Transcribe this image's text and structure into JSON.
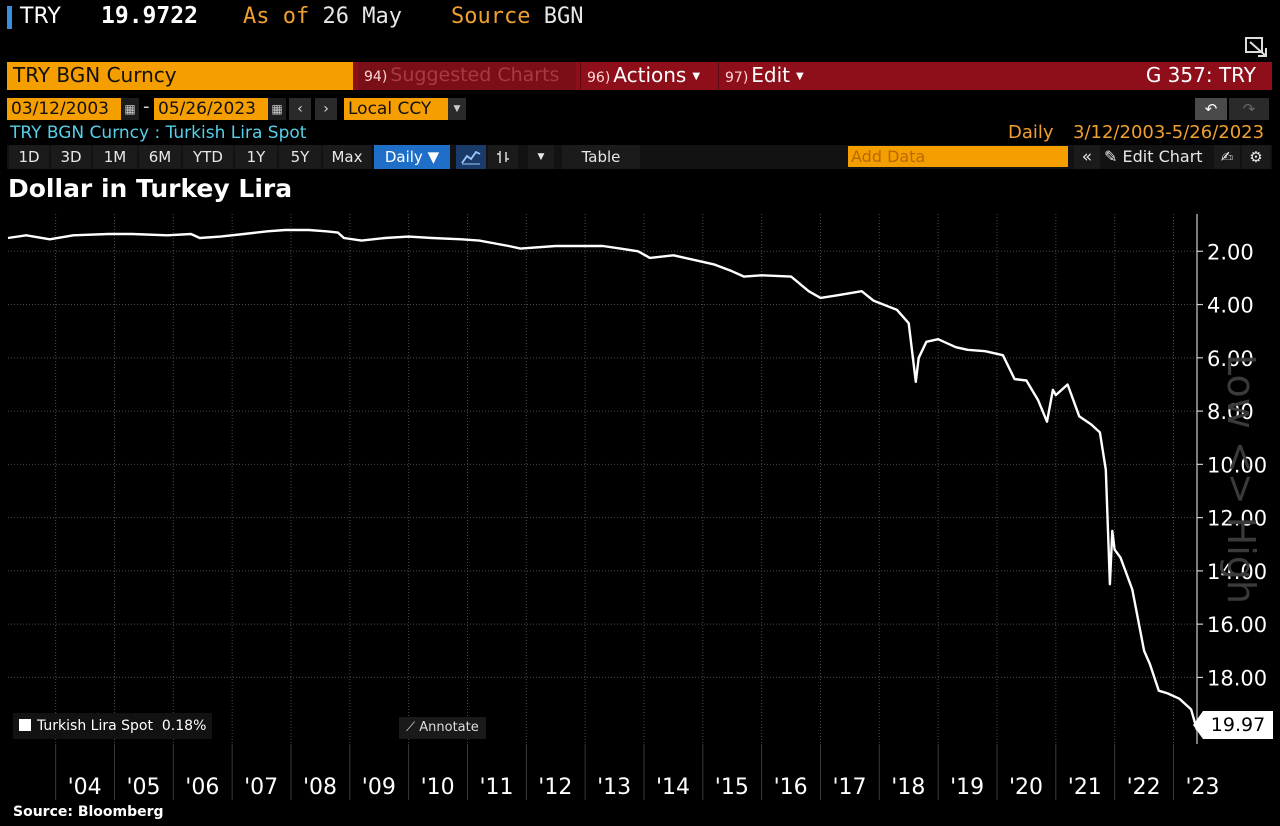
{
  "header": {
    "ticker": "TRY",
    "price": "19.9722",
    "asof_label": "As of",
    "asof_value": "26 May",
    "source_label": "Source",
    "source_value": "BGN"
  },
  "command_bar": {
    "security": "TRY BGN Curncy",
    "suggested_num": "94)",
    "suggested_label": "Suggested Charts",
    "actions_num": "96)",
    "actions_label": "Actions",
    "edit_num": "97)",
    "edit_label": "Edit",
    "function_code": "G 357: TRY"
  },
  "date_row": {
    "start_date": "03/12/2003",
    "end_date": "05/26/2023",
    "dash": "-",
    "currency": "Local CCY"
  },
  "desc_row": {
    "description": "TRY BGN Curncy : Turkish Lira Spot",
    "period": "Daily",
    "range": "3/12/2003-5/26/2023"
  },
  "toolbar": {
    "ranges": [
      "1D",
      "3D",
      "1M",
      "6M",
      "YTD",
      "1Y",
      "5Y",
      "Max"
    ],
    "frequency": "Daily",
    "table": "Table",
    "add_data_placeholder": "Add Data",
    "edit_chart": "Edit Chart"
  },
  "chart_data": {
    "type": "line",
    "title": "Dollar in Turkey Lira",
    "xlabel": "",
    "ylabel": "",
    "y_inverted": true,
    "ylim": [
      0.6,
      20.5
    ],
    "xlim": [
      2003.19,
      2023.4
    ],
    "y_ticks": [
      "2.00",
      "4.00",
      "6.00",
      "8.00",
      "10.00",
      "12.00",
      "14.00",
      "16.00",
      "18.00"
    ],
    "y_tick_values": [
      2,
      4,
      6,
      8,
      10,
      12,
      14,
      16,
      18
    ],
    "x_ticks": [
      "'04",
      "'05",
      "'06",
      "'07",
      "'08",
      "'09",
      "'10",
      "'11",
      "'12",
      "'13",
      "'14",
      "'15",
      "'16",
      "'17",
      "'18",
      "'19",
      "'20",
      "'21",
      "'22",
      "'23"
    ],
    "x_tick_values": [
      2004,
      2005,
      2006,
      2007,
      2008,
      2009,
      2010,
      2011,
      2012,
      2013,
      2014,
      2015,
      2016,
      2017,
      2018,
      2019,
      2020,
      2021,
      2022,
      2023
    ],
    "grid": true,
    "series": [
      {
        "name": "Turkish Lira Spot",
        "color": "#ffffff",
        "x": [
          2003.19,
          2003.5,
          2003.9,
          2004.3,
          2004.9,
          2005.3,
          2005.9,
          2006.3,
          2006.45,
          2006.8,
          2007.2,
          2007.6,
          2007.9,
          2008.3,
          2008.6,
          2008.8,
          2008.9,
          2009.2,
          2009.6,
          2010.0,
          2010.4,
          2010.9,
          2011.2,
          2011.7,
          2011.9,
          2012.5,
          2012.9,
          2013.3,
          2013.6,
          2013.9,
          2014.1,
          2014.5,
          2014.9,
          2015.2,
          2015.5,
          2015.7,
          2016.0,
          2016.5,
          2016.8,
          2017.0,
          2017.3,
          2017.7,
          2017.9,
          2018.3,
          2018.5,
          2018.62,
          2018.67,
          2018.8,
          2019.0,
          2019.3,
          2019.5,
          2019.8,
          2020.1,
          2020.3,
          2020.5,
          2020.7,
          2020.85,
          2020.95,
          2021.0,
          2021.2,
          2021.4,
          2021.6,
          2021.75,
          2021.85,
          2021.92,
          2021.96,
          2022.0,
          2022.1,
          2022.3,
          2022.5,
          2022.6,
          2022.75,
          2022.9,
          2023.1,
          2023.3,
          2023.4
        ],
        "values": [
          1.5,
          1.4,
          1.55,
          1.4,
          1.35,
          1.35,
          1.4,
          1.35,
          1.5,
          1.45,
          1.35,
          1.25,
          1.2,
          1.2,
          1.25,
          1.3,
          1.5,
          1.6,
          1.5,
          1.45,
          1.5,
          1.55,
          1.6,
          1.8,
          1.9,
          1.8,
          1.8,
          1.8,
          1.9,
          2.0,
          2.25,
          2.15,
          2.35,
          2.5,
          2.75,
          2.95,
          2.9,
          2.95,
          3.5,
          3.75,
          3.65,
          3.5,
          3.85,
          4.2,
          4.7,
          6.9,
          6.0,
          5.4,
          5.3,
          5.6,
          5.7,
          5.75,
          5.9,
          6.8,
          6.85,
          7.6,
          8.4,
          7.2,
          7.4,
          7.0,
          8.2,
          8.5,
          8.8,
          10.2,
          14.5,
          12.5,
          13.2,
          13.5,
          14.7,
          17.0,
          17.5,
          18.5,
          18.6,
          18.8,
          19.2,
          19.97
        ]
      }
    ]
  },
  "legend": {
    "label": "Turkish Lira Spot",
    "change": "0.18%"
  },
  "annotate": "Annotate",
  "last_value": "19.97",
  "footer": {
    "source": "Source: Bloomberg"
  },
  "watermark": "Low <> High"
}
